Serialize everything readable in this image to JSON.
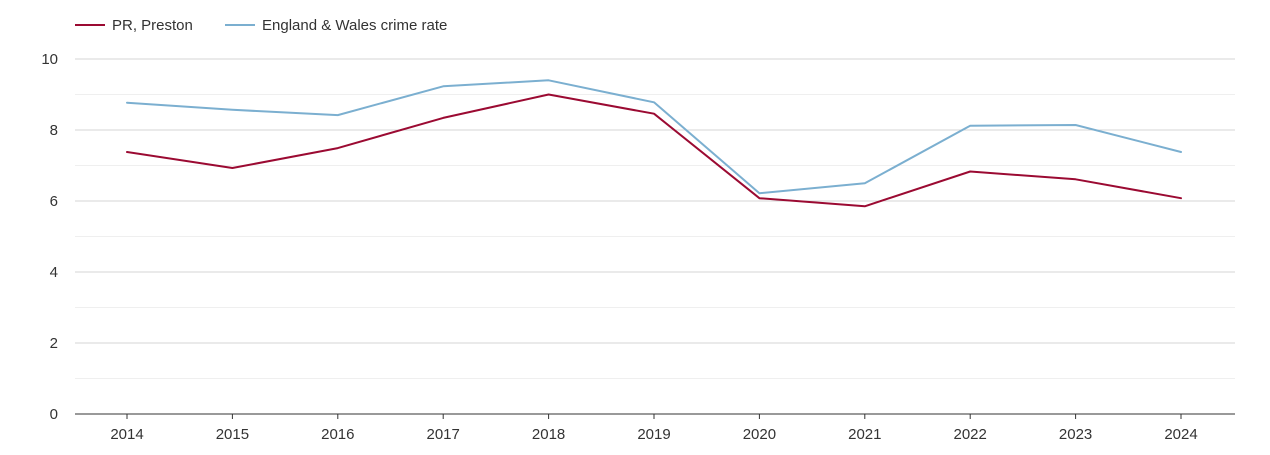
{
  "chart_data": {
    "type": "line",
    "title": "",
    "xlabel": "",
    "ylabel": "",
    "x": [
      "2014",
      "2015",
      "2016",
      "2017",
      "2018",
      "2019",
      "2020",
      "2021",
      "2022",
      "2023",
      "2024"
    ],
    "ylim": [
      0,
      10
    ],
    "y_ticks": [
      "0",
      "2",
      "4",
      "6",
      "8",
      "10"
    ],
    "y_tick_values": [
      0,
      2,
      4,
      6,
      8,
      10
    ],
    "minor_grid_values": [
      1,
      3,
      5,
      7,
      9
    ],
    "grid": true,
    "legend_position": "top-left",
    "series": [
      {
        "name": "PR, Preston",
        "color": "#9b0a32",
        "values": [
          7.38,
          6.93,
          7.49,
          8.34,
          9.0,
          8.46,
          6.08,
          5.85,
          6.83,
          6.61,
          6.08
        ]
      },
      {
        "name": "England & Wales crime rate",
        "color": "#7bafd0",
        "values": [
          8.77,
          8.57,
          8.42,
          9.23,
          9.4,
          8.78,
          6.22,
          6.5,
          8.12,
          8.14,
          7.38
        ]
      }
    ]
  }
}
